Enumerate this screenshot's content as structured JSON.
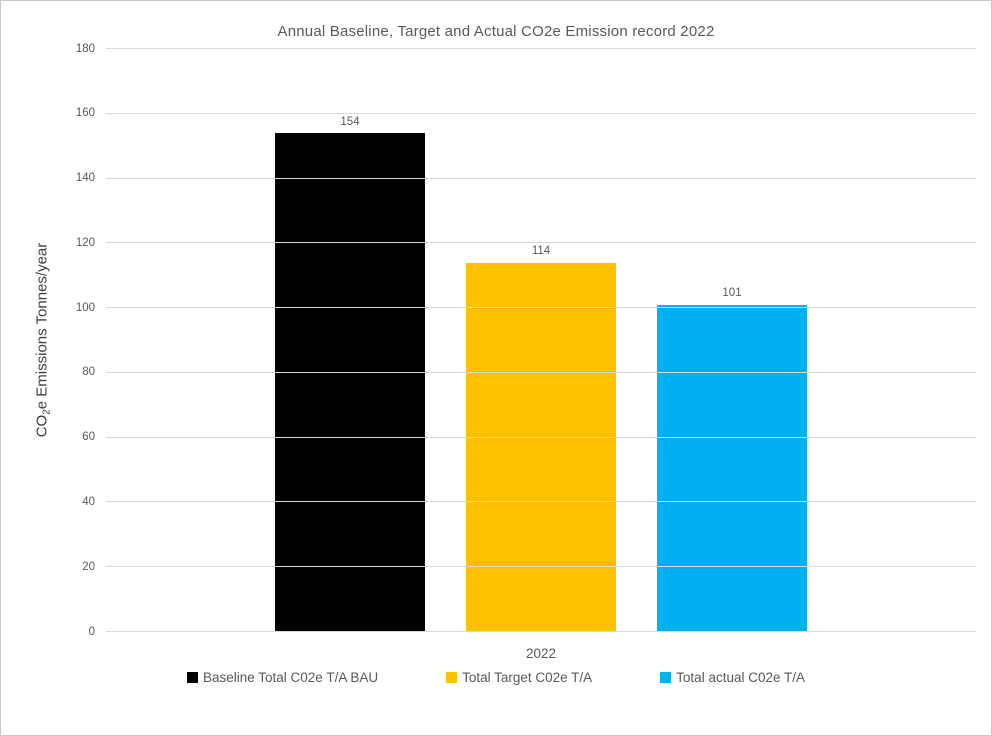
{
  "chart_data": {
    "type": "bar",
    "title": "Annual Baseline, Target and Actual CO2e Emission record 2022",
    "categories": [
      "2022"
    ],
    "series": [
      {
        "name": "Baseline Total C02e T/A BAU",
        "color": "#000000",
        "values": [
          154
        ]
      },
      {
        "name": "Total Target C02e T/A",
        "color": "#FFC000",
        "values": [
          114
        ]
      },
      {
        "name": "Total actual C02e T/A",
        "color": "#00B0F0",
        "values": [
          101
        ]
      }
    ],
    "ylabel": {
      "pre": "CO",
      "sub": "2",
      "post": "e Emissions Tonnes/year"
    },
    "xlabel": "",
    "ylim": [
      0,
      180
    ],
    "yticks": [
      0,
      20,
      40,
      60,
      80,
      100,
      120,
      140,
      160,
      180
    ],
    "grid": "horizontal",
    "legend_position": "bottom",
    "colors": {
      "gridline": "#D9D9D9",
      "axis_text": "#595959",
      "title_text": "#595959",
      "data_label": "#595959",
      "frame_border": "#C8C8C8",
      "background": "#FFFFFF"
    }
  }
}
